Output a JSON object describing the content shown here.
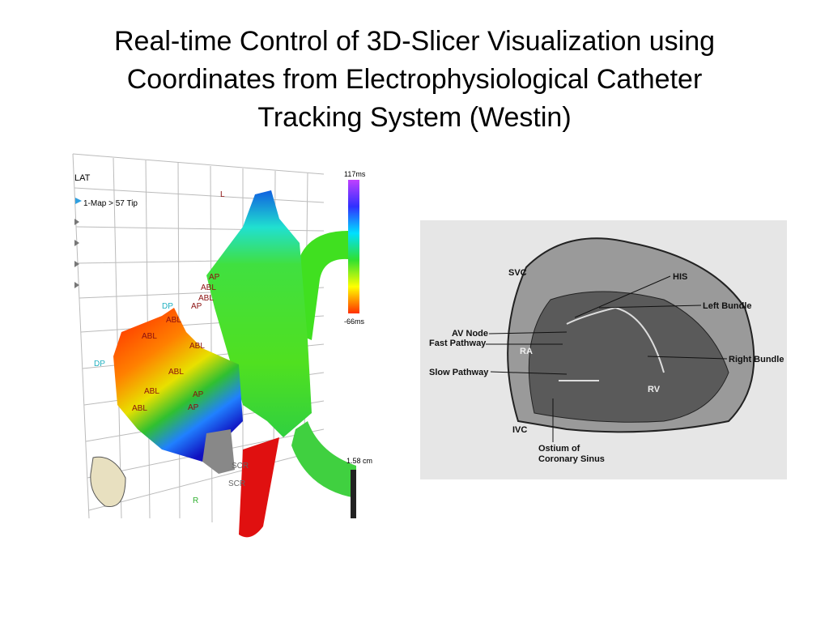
{
  "title_lines": [
    "Real-time Control of 3D-Slicer Visualization using",
    "Coordinates from Electrophysiological Catheter",
    "Tracking System (Westin)"
  ],
  "map": {
    "mode": "LAT",
    "item": "1-Map > 57 Tip",
    "scale_max": "117ms",
    "scale_min": "-66ms",
    "scale_length": "1.58 cm",
    "labels": [
      "L",
      "AP",
      "ABL",
      "AP",
      "ABL",
      "DP",
      "ABL",
      "ABL",
      "ABL",
      "ABL",
      "AP",
      "AP",
      "ABL",
      "ABL",
      "DP",
      "SCR",
      "SCR",
      "R"
    ]
  },
  "diagram": {
    "labels": [
      "SVC",
      "HIS",
      "Left Bundle",
      "AV Node",
      "Fast Pathway",
      "RA",
      "Slow Pathway",
      "Right Bundle",
      "RV",
      "IVC",
      "Ostium of",
      "Coronary Sinus"
    ]
  }
}
